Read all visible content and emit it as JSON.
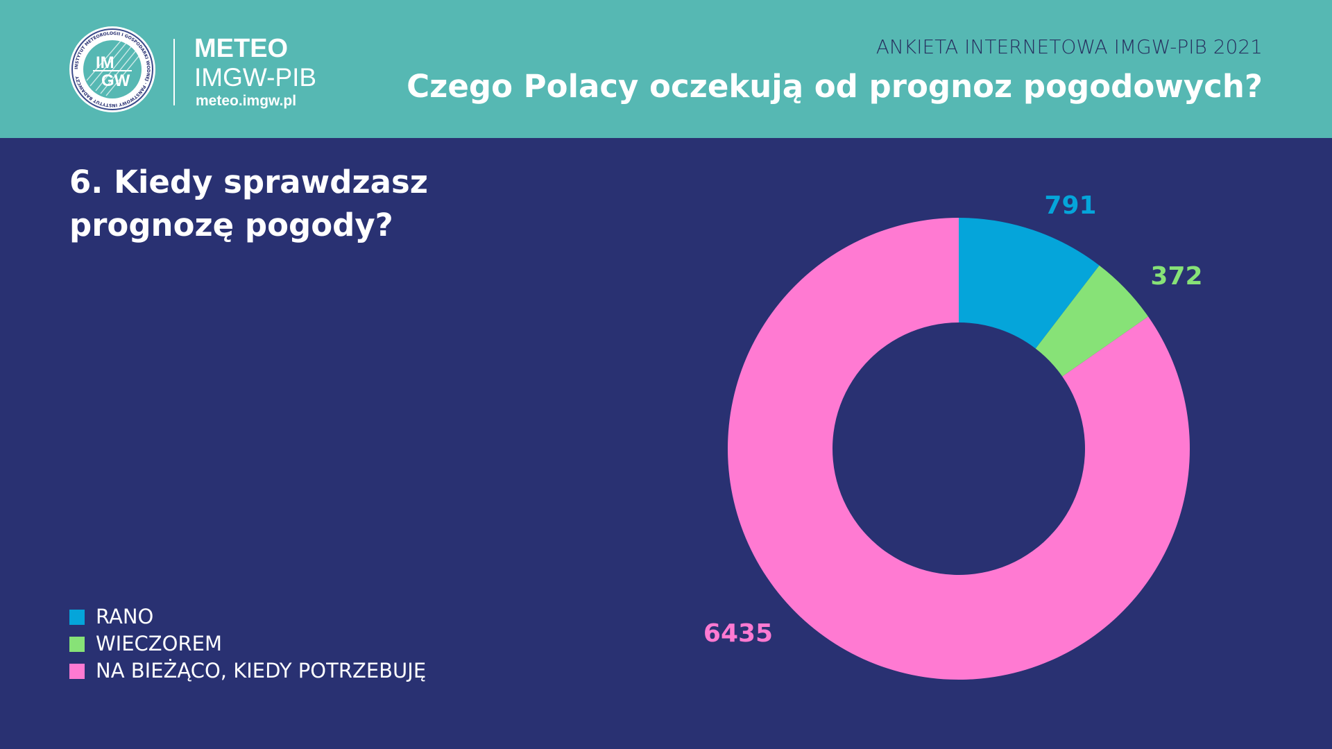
{
  "header": {
    "brand_title": "METEO",
    "brand_subtitle": "IMGW-PIB",
    "brand_url": "meteo.imgw.pl",
    "survey_label": "ANKIETA INTERNETOWA IMGW-PIB 2021",
    "survey_title": "Czego Polacy oczekują od prognoz pogodowych?",
    "logo_text_top": "IM",
    "logo_text_bottom": "GW",
    "logo_ring_text": "INSTYTUT METEOROLOGII I GOSPODARKI WODNEJ · PAŃSTWOWY INSTYTUT BADAWCZY"
  },
  "colors": {
    "background": "#293172",
    "header": "#56b8b3",
    "rano": "#05a5da",
    "wieczorem": "#87e277",
    "na_biezaco": "#ff7ad2"
  },
  "chart_data": {
    "type": "pie",
    "variant": "donut",
    "title": "6. Kiedy sprawdzasz prognozę pogody?",
    "categories": [
      "RANO",
      "WIECZOREM",
      "NA BIEŻĄCO, KIEDY POTRZEBUJĘ"
    ],
    "values": [
      791,
      372,
      6435
    ],
    "data_labels": [
      "791",
      "372",
      "6435"
    ],
    "colors": [
      "#05a5da",
      "#87e277",
      "#ff7ad2"
    ],
    "start_angle": "12 o'clock",
    "direction": "clockwise",
    "legend_position": "bottom-left"
  }
}
